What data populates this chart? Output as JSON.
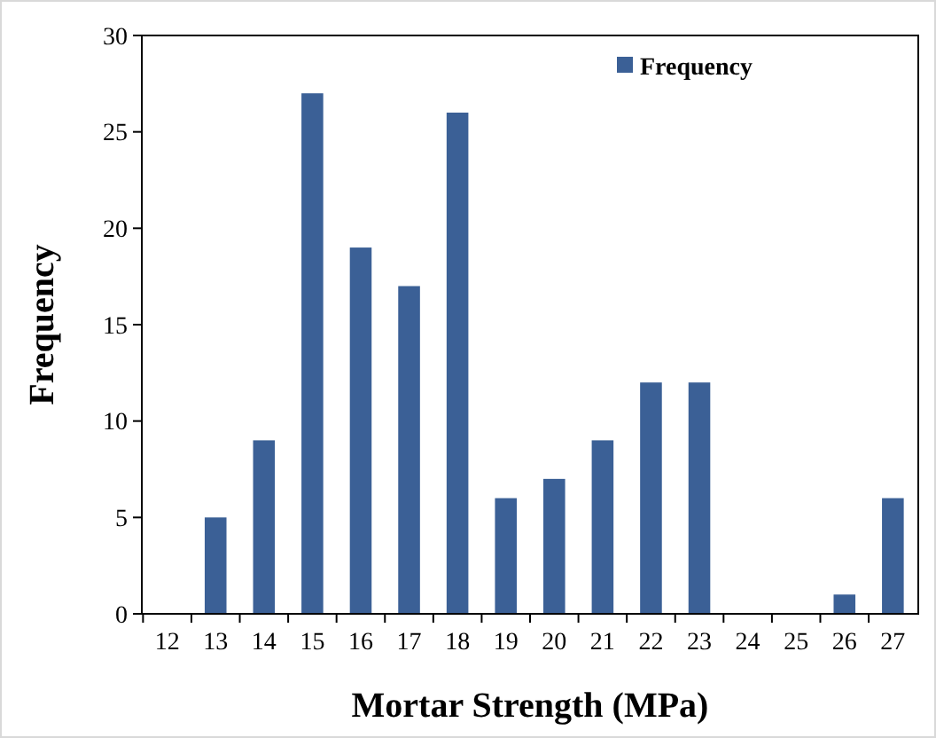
{
  "chart_data": {
    "type": "bar",
    "xlabel": "Mortar Strength (MPa)",
    "ylabel": "Frequency",
    "categories": [
      "12",
      "13",
      "14",
      "15",
      "16",
      "17",
      "18",
      "19",
      "20",
      "21",
      "22",
      "23",
      "24",
      "25",
      "26",
      "27"
    ],
    "series": [
      {
        "name": "Frequency",
        "color": "#3b6096",
        "values": [
          0,
          5,
          9,
          27,
          19,
          17,
          26,
          6,
          7,
          9,
          12,
          12,
          0,
          0,
          1,
          6
        ]
      }
    ],
    "ylim": [
      0,
      30
    ],
    "yticks": [
      0,
      5,
      10,
      15,
      20,
      25,
      30
    ],
    "legend": "top right"
  }
}
